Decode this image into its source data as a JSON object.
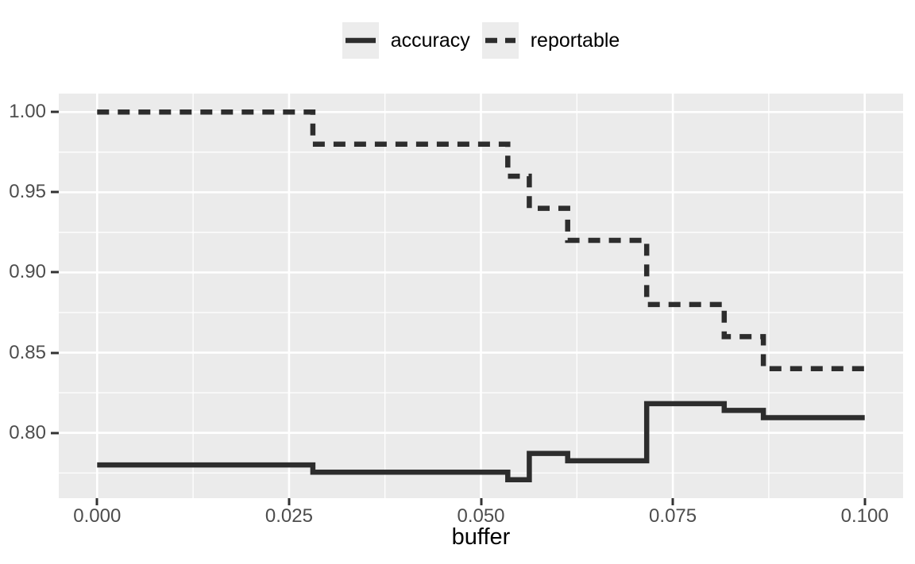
{
  "figure": {
    "colors": {
      "background": "#FFFFFF",
      "panel": "#EBEBEB",
      "grid": "#FFFFFF",
      "series_line": "#2D2D2D",
      "tick_mark": "#333333",
      "tick_label": "#4D4D4D",
      "axis_title": "#000000",
      "legend_key": "#ECECEC",
      "legend_label": "#000000"
    }
  },
  "chart_data": {
    "type": "line",
    "step": "hv",
    "title": "",
    "xlabel": "buffer",
    "ylabel": "",
    "legend_position": "top-center",
    "grid": "major+minor",
    "xlim": [
      -0.005,
      0.105
    ],
    "ylim": [
      0.7593,
      1.0115
    ],
    "x_ticks": [
      0,
      0.025,
      0.05,
      0.075,
      0.1
    ],
    "x_tick_labels": [
      "0.000",
      "0.025",
      "0.050",
      "0.075",
      "0.100"
    ],
    "y_ticks": [
      0.8,
      0.85,
      0.9,
      0.95,
      1.0
    ],
    "y_tick_labels": [
      "0.80",
      "0.85",
      "0.90",
      "0.95",
      "1.00"
    ],
    "x": [
      0,
      0.0281,
      0.0535,
      0.0563,
      0.0613,
      0.0716,
      0.0817,
      0.0868,
      0.1
    ],
    "series": [
      {
        "name": "accuracy",
        "line_style": "solid",
        "values": [
          0.78,
          0.7755,
          0.7708,
          0.7872,
          0.7826,
          0.8182,
          0.814,
          0.8095,
          0.8095
        ]
      },
      {
        "name": "reportable",
        "line_style": "dashed",
        "values": [
          1.0,
          0.98,
          0.96,
          0.94,
          0.92,
          0.88,
          0.86,
          0.84,
          0.84
        ]
      }
    ]
  }
}
